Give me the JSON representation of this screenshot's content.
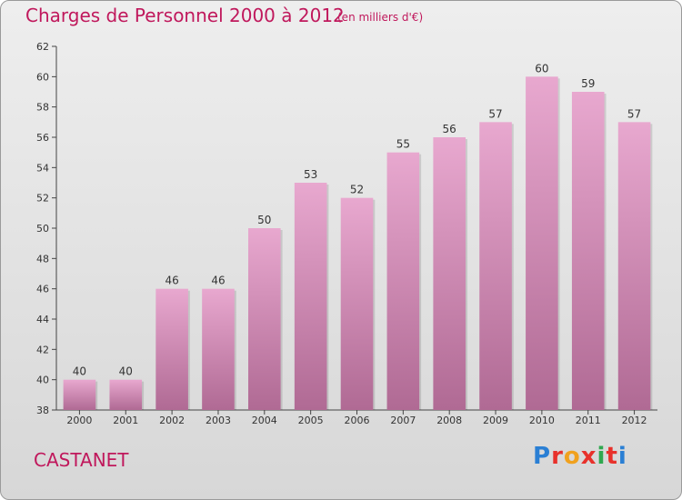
{
  "title": "Charges de Personnel 2000 à 2012",
  "subtitle": "(en milliers d'€)",
  "city": "CASTANET",
  "logo": {
    "text": "Proxiti",
    "colors": [
      "#2a7fd4",
      "#e8312b",
      "#f0a11e",
      "#e8312b",
      "#2fa84f",
      "#e8312b",
      "#2a7fd4"
    ]
  },
  "colors": {
    "title": "#c0185c",
    "bar_top": "#e8a8cf",
    "bar_bottom": "#b06a94"
  },
  "chart_data": {
    "type": "bar",
    "title": "Charges de Personnel 2000 à 2012",
    "subtitle": "(en milliers d'€)",
    "categories": [
      "2000",
      "2001",
      "2002",
      "2003",
      "2004",
      "2005",
      "2006",
      "2007",
      "2008",
      "2009",
      "2010",
      "2011",
      "2012"
    ],
    "values": [
      40,
      40,
      46,
      46,
      50,
      53,
      52,
      55,
      56,
      57,
      60,
      59,
      57
    ],
    "data_labels": [
      "40",
      "40",
      "46",
      "46",
      "50",
      "53",
      "52",
      "55",
      "56",
      "57",
      "60",
      "59",
      "57"
    ],
    "ylim": [
      38,
      62
    ],
    "yticks": [
      38,
      40,
      42,
      44,
      46,
      48,
      50,
      52,
      54,
      56,
      58,
      60,
      62
    ],
    "grid": false,
    "legend": "none"
  }
}
